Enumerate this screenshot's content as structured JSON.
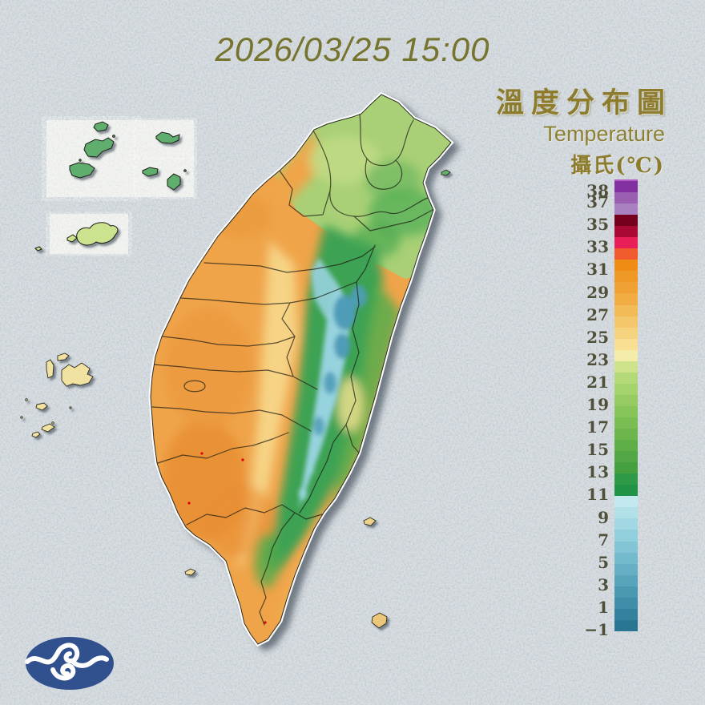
{
  "header": {
    "datetime": "2026/03/25 15:00"
  },
  "legend": {
    "title_zh": "溫度分布圖",
    "title_en": "Temperature",
    "unit_label": "攝氏(℃)",
    "colorbar": {
      "orientation": "vertical",
      "unit": "°C",
      "degrees_per_segment": 1,
      "range_top": "38+",
      "range_bottom": "-1",
      "ticks": [
        38,
        37,
        35,
        33,
        31,
        29,
        27,
        25,
        23,
        21,
        19,
        17,
        15,
        13,
        11,
        9,
        7,
        5,
        3,
        1,
        -1
      ],
      "segment_colors_top_to_bottom": [
        "#8330a0",
        "#9a5fb0",
        "#a981c1",
        "#75001d",
        "#a80a33",
        "#e81f57",
        "#f05a2c",
        "#ef8c14",
        "#ee9826",
        "#efa233",
        "#f1ad44",
        "#f3ba58",
        "#f5c76d",
        "#f6d37f",
        "#f8df93",
        "#f4eca9",
        "#cfe38d",
        "#b3d978",
        "#a4d26c",
        "#95cb62",
        "#87c45a",
        "#79bd53",
        "#6cb64d",
        "#5fae48",
        "#52a744",
        "#45a040",
        "#2e9a48",
        "#219347",
        "#c3e9ef",
        "#b2e0e9",
        "#a2d8e3",
        "#92cfdc",
        "#83c5d5",
        "#74bacd",
        "#66afc4",
        "#58a4bb",
        "#4b98b1",
        "#3f8da8",
        "#34819d",
        "#297693"
      ]
    }
  },
  "map": {
    "palette": {
      "lowland_orange": "#f0a44a",
      "warm_orange": "#e78e34",
      "foothill_yellow": "#f6d88c",
      "plain_green": "#a9d076",
      "mountain_green": "#3ea253",
      "high_cold_cyan": "#97d3df",
      "peak_blue": "#4f9cb8",
      "east_coast_strip": "#cde087",
      "inset_island_green": "#5fae6d",
      "kinmen_green": "#cbe28e",
      "penghu_sand": "#f2e2a2",
      "inset_box": "#eceeea"
    }
  },
  "theme": {
    "background": "#c3ccd2",
    "title_color": "#777430",
    "legend_gold": "#8d7c2e",
    "tick_color": "#50503a",
    "logo_blue": "#31508e",
    "sea_shadow": "#5c7182"
  }
}
